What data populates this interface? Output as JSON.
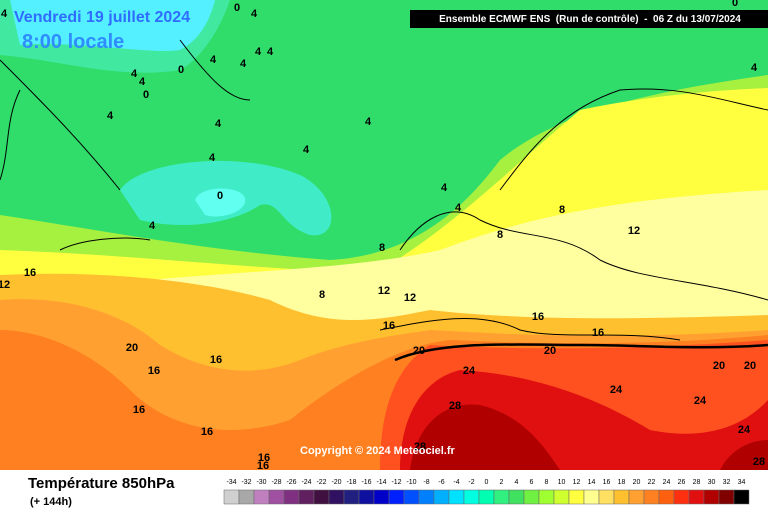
{
  "header": {
    "title": "Vendredi 19 juillet 2024",
    "time": "8:00 locale",
    "run": "Ensemble ECMWF ENS  (Run de contrôle)  -  06 Z du 13/07/2024",
    "copyright": "Copyright © 2024 Meteociel.fr"
  },
  "footer": {
    "variable": "Température 850hPa",
    "lead": "(+ 144h)"
  },
  "legend": {
    "labels": [
      -34,
      -32,
      -30,
      -28,
      -26,
      -24,
      -22,
      -20,
      -18,
      -16,
      -14,
      -12,
      -10,
      -8,
      -6,
      -4,
      -2,
      0,
      2,
      4,
      6,
      8,
      10,
      12,
      14,
      16,
      18,
      20,
      22,
      24,
      26,
      28,
      30,
      32,
      34
    ],
    "colors": [
      "#d0d0d0",
      "#a8a8a8",
      "#c080c0",
      "#a050a0",
      "#803080",
      "#602060",
      "#401040",
      "#301060",
      "#202080",
      "#1010a0",
      "#0000c8",
      "#0020ff",
      "#0050ff",
      "#0080ff",
      "#00b0ff",
      "#00e0ff",
      "#00ffe0",
      "#00ffb0",
      "#30f080",
      "#40e060",
      "#70f040",
      "#a0ff30",
      "#d0ff30",
      "#ffff40",
      "#ffff90",
      "#ffe060",
      "#ffc030",
      "#ffa030",
      "#ff8020",
      "#ff6010",
      "#ff3010",
      "#e01010",
      "#b00000",
      "#800000",
      "#000000"
    ]
  },
  "map": {
    "contour_labels": [
      0,
      0,
      0,
      0,
      0,
      4,
      4,
      4,
      4,
      4,
      4,
      4,
      4,
      4,
      4,
      4,
      4,
      4,
      4,
      4,
      4,
      4,
      8,
      8,
      8,
      8,
      12,
      12,
      12,
      12,
      16,
      16,
      16,
      16,
      16,
      16,
      16,
      16,
      16,
      16,
      20,
      20,
      20,
      20,
      20,
      24,
      24,
      24,
      24,
      28,
      28,
      28
    ]
  }
}
